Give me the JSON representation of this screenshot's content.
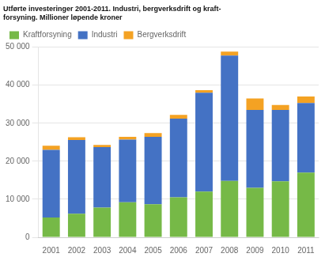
{
  "chart_data": {
    "type": "bar",
    "title": [
      "Utførte investeringer 2001-2011. Industri, bergverksdrift og kraft-",
      "forsyning. Millioner løpende kroner"
    ],
    "categories": [
      "2001",
      "2002",
      "2003",
      "2004",
      "2005",
      "2006",
      "2007",
      "2008",
      "2009",
      "2010",
      "2011"
    ],
    "series": [
      {
        "name": "Kraftforsyning",
        "color": "#76b947",
        "values": [
          5200,
          6200,
          7800,
          9200,
          8700,
          10500,
          12000,
          14800,
          13000,
          14700,
          17000
        ]
      },
      {
        "name": "Industri",
        "color": "#4472c4",
        "values": [
          17800,
          19400,
          15900,
          16500,
          17700,
          20700,
          26000,
          33000,
          20500,
          18800,
          18300
        ]
      },
      {
        "name": "Bergverksdrift",
        "color": "#f4a223",
        "values": [
          1100,
          700,
          600,
          700,
          1000,
          1000,
          700,
          1000,
          3000,
          1300,
          1700
        ]
      }
    ],
    "stacked": true,
    "ylim": [
      0,
      50000
    ],
    "yticks": [
      0,
      {
        "value": 10000,
        "label": "10 000"
      },
      {
        "value": 20000,
        "label": "20 000"
      },
      {
        "value": 30000,
        "label": "30 000"
      },
      {
        "value": 40000,
        "label": "40 000"
      },
      {
        "value": 50000,
        "label": "50 000"
      }
    ],
    "grid": true,
    "legend": "upper left"
  }
}
